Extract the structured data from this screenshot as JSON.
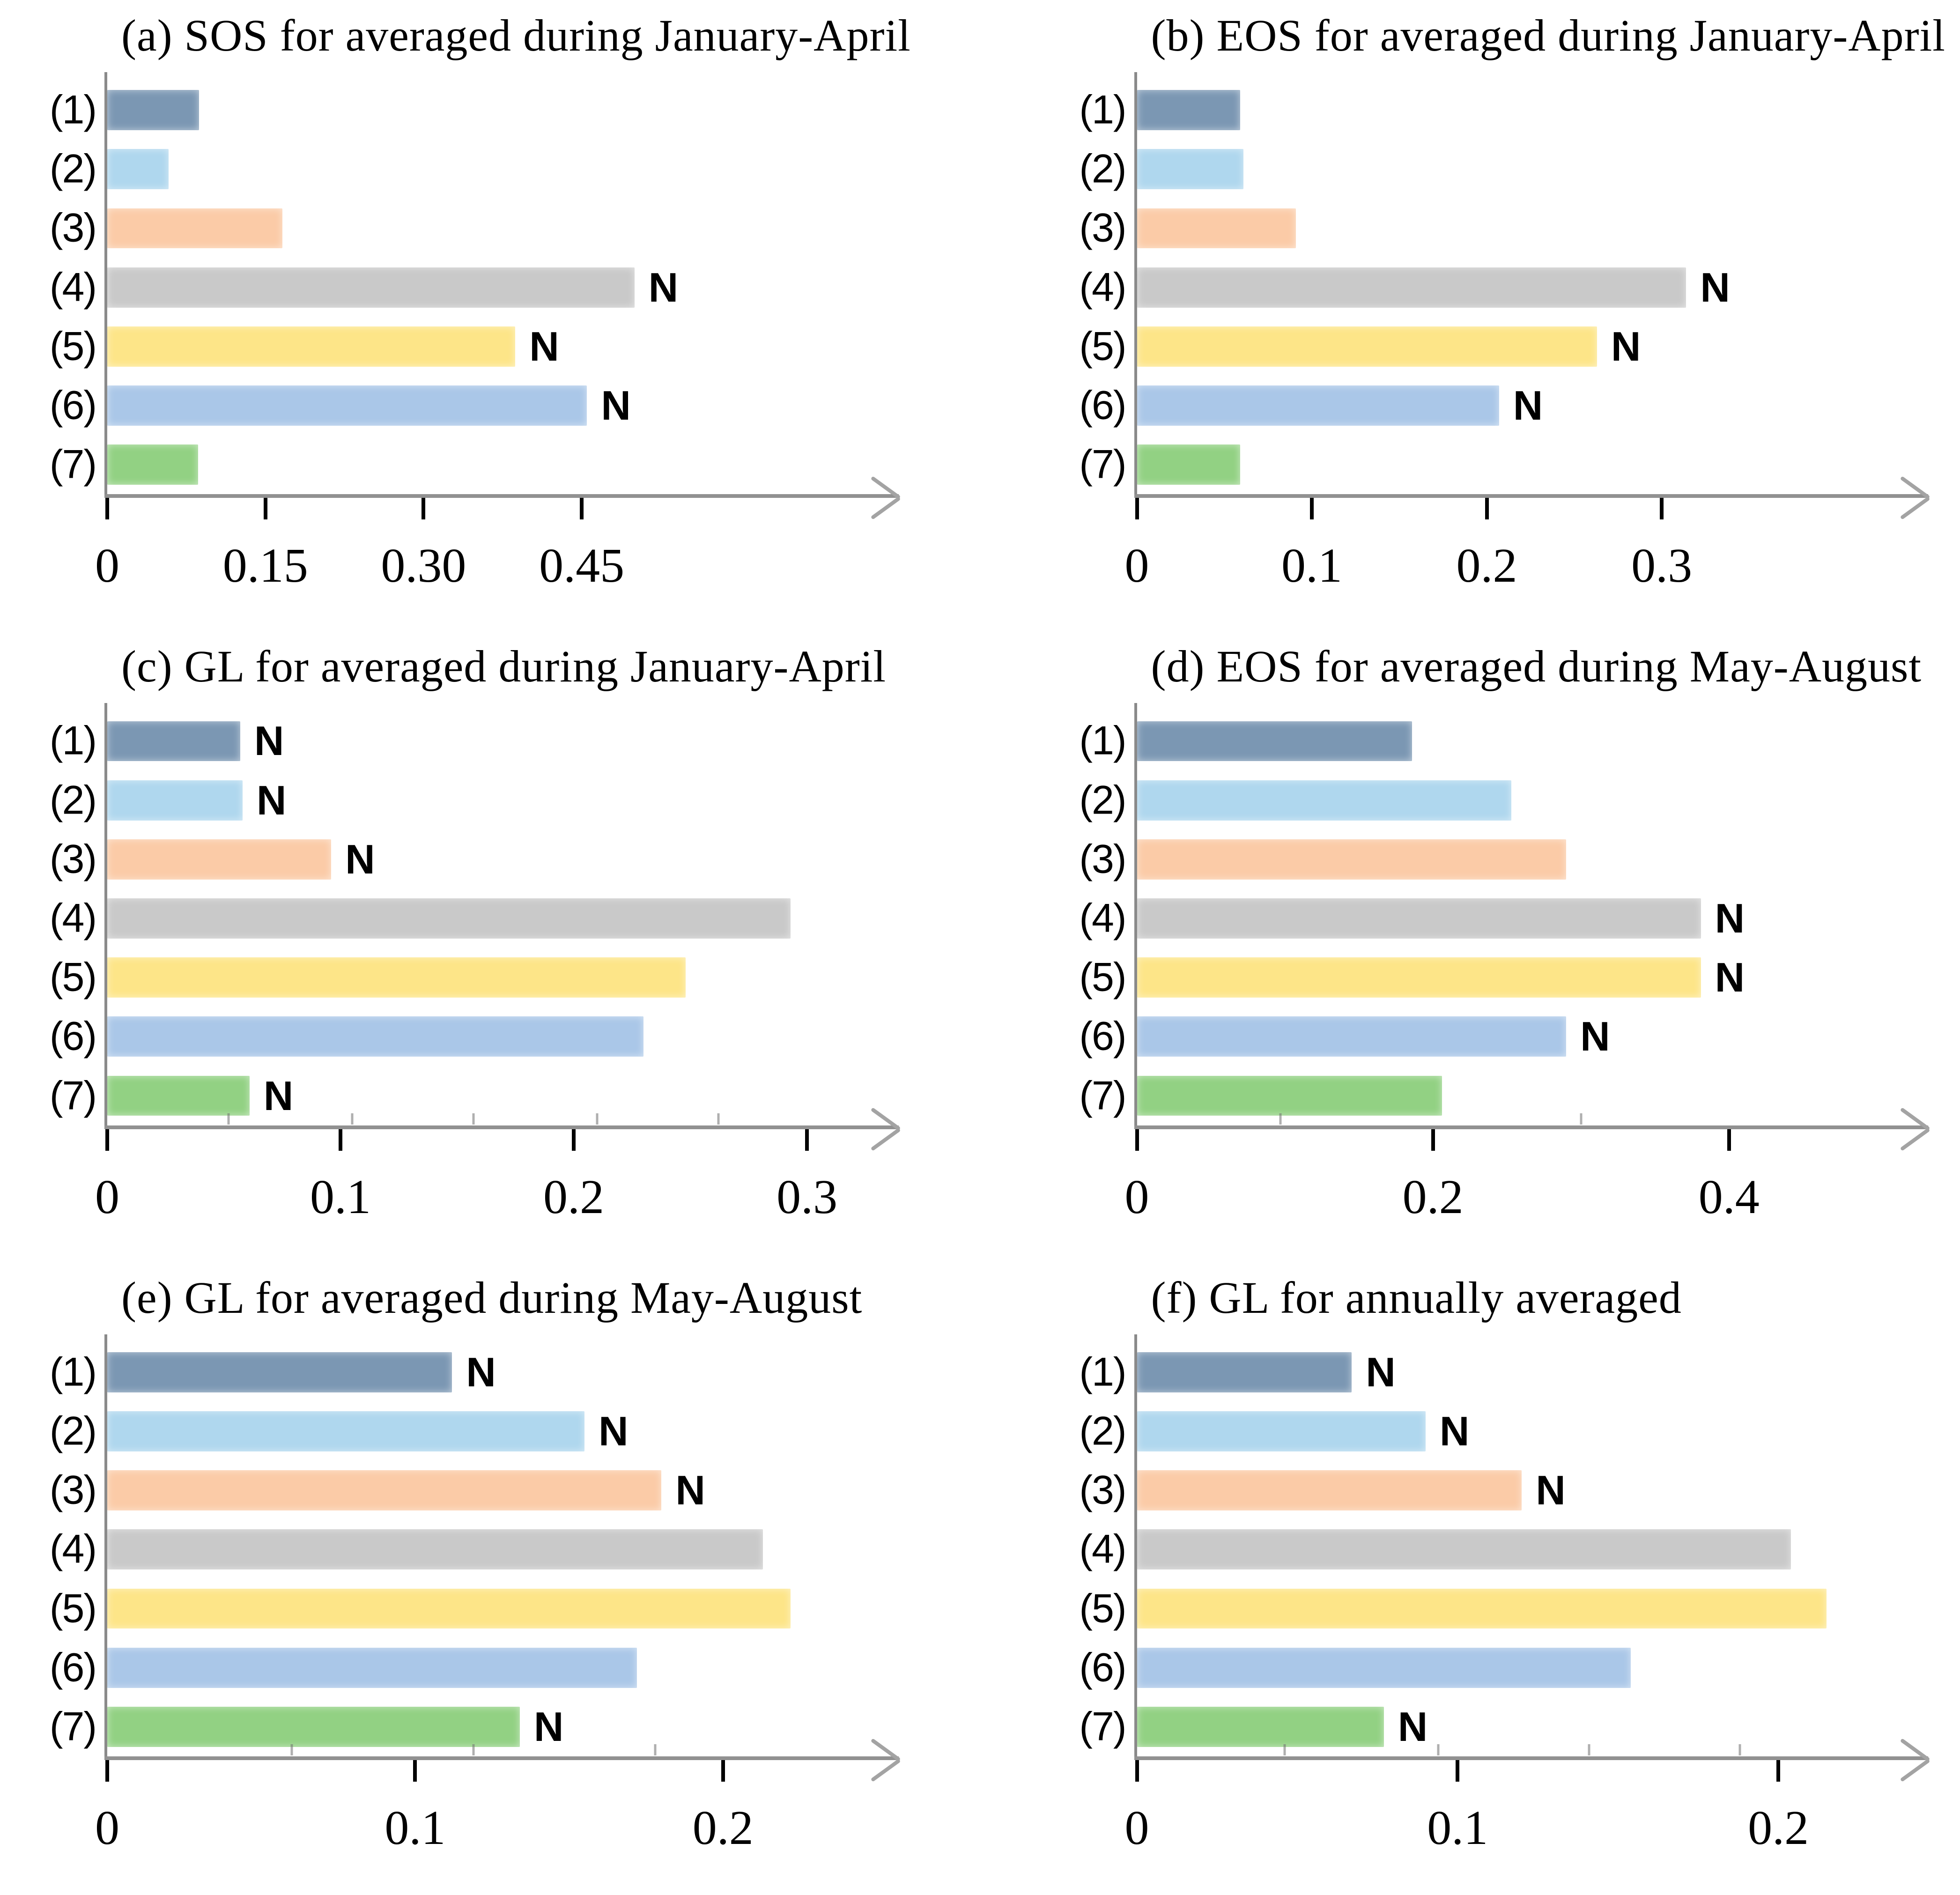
{
  "page": {
    "background": "#ffffff"
  },
  "style": {
    "axis_color": "#919191",
    "y_axis_color": "#8a8a8a",
    "tick_color": "#000000",
    "minor_tick_color": "#6e6e6e",
    "n_color": "#000000",
    "bar_colors": [
      "#7B97B3",
      "#AFD7EE",
      "#FBCBA7",
      "#C9C9C9",
      "#FDE588",
      "#AAC7E8",
      "#92D183"
    ]
  },
  "n_label": "N",
  "chart_data": [
    {
      "panel": "a",
      "type": "bar",
      "orientation": "horizontal",
      "title": "(a) SOS for averaged during January-April",
      "categories": [
        "(1)",
        "(2)",
        "(3)",
        "(4)",
        "(5)",
        "(6)",
        "(7)"
      ],
      "values": [
        0.087,
        0.058,
        0.166,
        0.5,
        0.387,
        0.455,
        0.086
      ],
      "n_flags": [
        false,
        false,
        false,
        true,
        true,
        true,
        false
      ],
      "xticks": [
        0,
        0.15,
        0.3,
        0.45
      ],
      "xtick_labels": [
        "0",
        "0.15",
        "0.30",
        "0.45"
      ],
      "xlim": [
        0,
        0.73
      ],
      "minor_ticks": [],
      "xlabel": "",
      "ylabel": "",
      "grid": false,
      "legend": false
    },
    {
      "panel": "b",
      "type": "bar",
      "orientation": "horizontal",
      "title": "(b) EOS for averaged during January-April",
      "categories": [
        "(1)",
        "(2)",
        "(3)",
        "(4)",
        "(5)",
        "(6)",
        "(7)"
      ],
      "values": [
        0.059,
        0.061,
        0.091,
        0.314,
        0.263,
        0.207,
        0.059
      ],
      "n_flags": [
        false,
        false,
        false,
        true,
        true,
        true,
        false
      ],
      "xticks": [
        0,
        0.1,
        0.2,
        0.3
      ],
      "xtick_labels": [
        "0",
        "0.1",
        "0.2",
        "0.3"
      ],
      "xlim": [
        0,
        0.44
      ],
      "minor_ticks": [],
      "xlabel": "",
      "ylabel": "",
      "grid": false,
      "legend": false
    },
    {
      "panel": "c",
      "type": "bar",
      "orientation": "horizontal",
      "title": "(c) GL for averaged during January-April",
      "categories": [
        "(1)",
        "(2)",
        "(3)",
        "(4)",
        "(5)",
        "(6)",
        "(7)"
      ],
      "values": [
        0.057,
        0.058,
        0.096,
        0.293,
        0.248,
        0.23,
        0.061
      ],
      "n_flags": [
        true,
        true,
        true,
        false,
        false,
        false,
        true
      ],
      "xticks": [
        0,
        0.1,
        0.2,
        0.3
      ],
      "xtick_labels": [
        "0",
        "0.1",
        "0.2",
        "0.3"
      ],
      "xlim": [
        0,
        0.33
      ],
      "minor_ticks": [
        0.052,
        0.105,
        0.157,
        0.21,
        0.262
      ],
      "xlabel": "",
      "ylabel": "",
      "grid": false,
      "legend": false
    },
    {
      "panel": "d",
      "type": "bar",
      "orientation": "horizontal",
      "title": "(d) EOS for averaged during May-August",
      "categories": [
        "(1)",
        "(2)",
        "(3)",
        "(4)",
        "(5)",
        "(6)",
        "(7)"
      ],
      "values": [
        0.186,
        0.253,
        0.29,
        0.381,
        0.381,
        0.29,
        0.206
      ],
      "n_flags": [
        false,
        false,
        false,
        true,
        true,
        true,
        false
      ],
      "xticks": [
        0,
        0.2,
        0.4
      ],
      "xtick_labels": [
        "0",
        "0.2",
        "0.4"
      ],
      "xlim": [
        0,
        0.52
      ],
      "minor_ticks": [
        0.097,
        0.3
      ],
      "xlabel": "",
      "ylabel": "",
      "grid": false,
      "legend": false
    },
    {
      "panel": "e",
      "type": "bar",
      "orientation": "horizontal",
      "title": "(e) GL for averaged during May-August",
      "categories": [
        "(1)",
        "(2)",
        "(3)",
        "(4)",
        "(5)",
        "(6)",
        "(7)"
      ],
      "values": [
        0.112,
        0.155,
        0.18,
        0.213,
        0.222,
        0.172,
        0.134
      ],
      "n_flags": [
        true,
        true,
        true,
        false,
        false,
        false,
        true
      ],
      "xticks": [
        0,
        0.1,
        0.2
      ],
      "xtick_labels": [
        "0",
        "0.1",
        "0.2"
      ],
      "xlim": [
        0,
        0.25
      ],
      "minor_ticks": [
        0.06,
        0.119,
        0.178
      ],
      "xlabel": "",
      "ylabel": "",
      "grid": false,
      "legend": false
    },
    {
      "panel": "f",
      "type": "bar",
      "orientation": "horizontal",
      "title": "(f) GL for annually averaged",
      "categories": [
        "(1)",
        "(2)",
        "(3)",
        "(4)",
        "(5)",
        "(6)",
        "(7)"
      ],
      "values": [
        0.067,
        0.09,
        0.12,
        0.204,
        0.215,
        0.154,
        0.077
      ],
      "n_flags": [
        true,
        true,
        true,
        false,
        false,
        false,
        true
      ],
      "xticks": [
        0,
        0.1,
        0.2
      ],
      "xtick_labels": [
        "0",
        "0.1",
        "0.2"
      ],
      "xlim": [
        0,
        0.24
      ],
      "minor_ticks": [
        0.046,
        0.094,
        0.141,
        0.188
      ],
      "xlabel": "",
      "ylabel": "",
      "grid": false,
      "legend": false
    }
  ]
}
